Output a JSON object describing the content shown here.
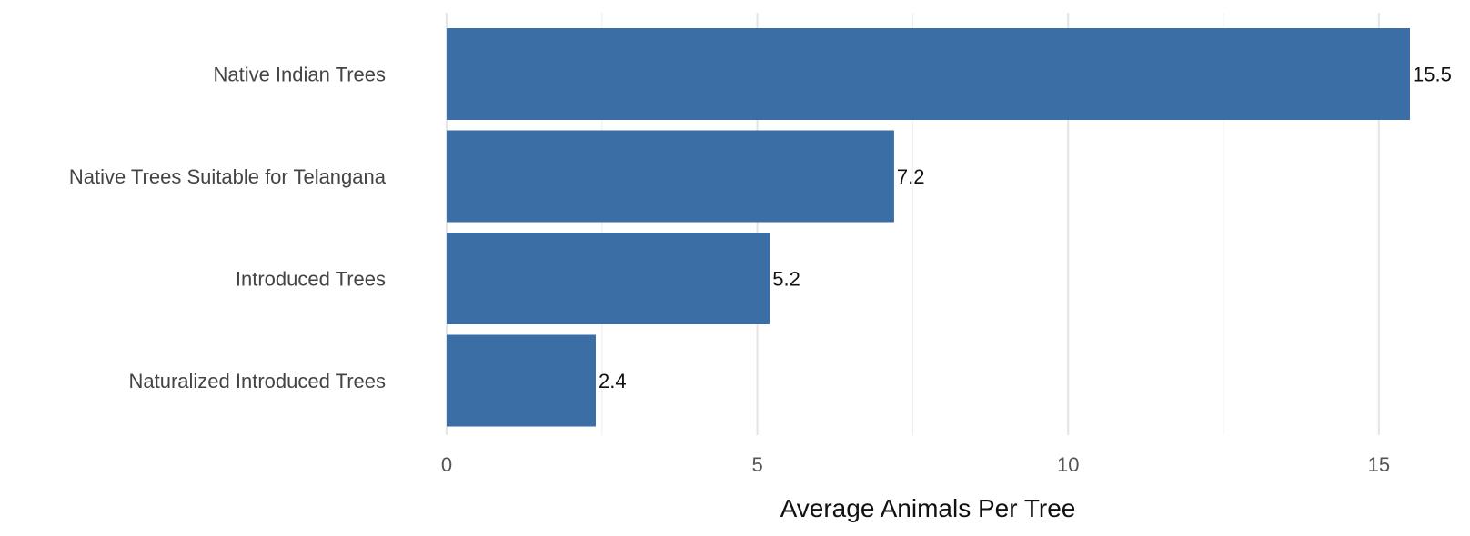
{
  "chart_data": {
    "type": "bar",
    "orientation": "horizontal",
    "categories": [
      "Native Indian Trees",
      "Native Trees Suitable for Telangana",
      "Introduced Trees",
      "Naturalized Introduced Trees"
    ],
    "values": [
      15.5,
      7.2,
      5.2,
      2.4
    ],
    "value_labels": [
      "15.5",
      "7.2",
      "5.2",
      "2.4"
    ],
    "xlabel": "Average Animals Per Tree",
    "ylabel": "",
    "xlim": [
      0,
      15.5
    ],
    "x_ticks": [
      0,
      5,
      10,
      15
    ],
    "x_tick_labels": [
      "0",
      "5",
      "10",
      "15"
    ],
    "grid": true,
    "legend": "none",
    "bar_color": "#3a6ea5"
  }
}
